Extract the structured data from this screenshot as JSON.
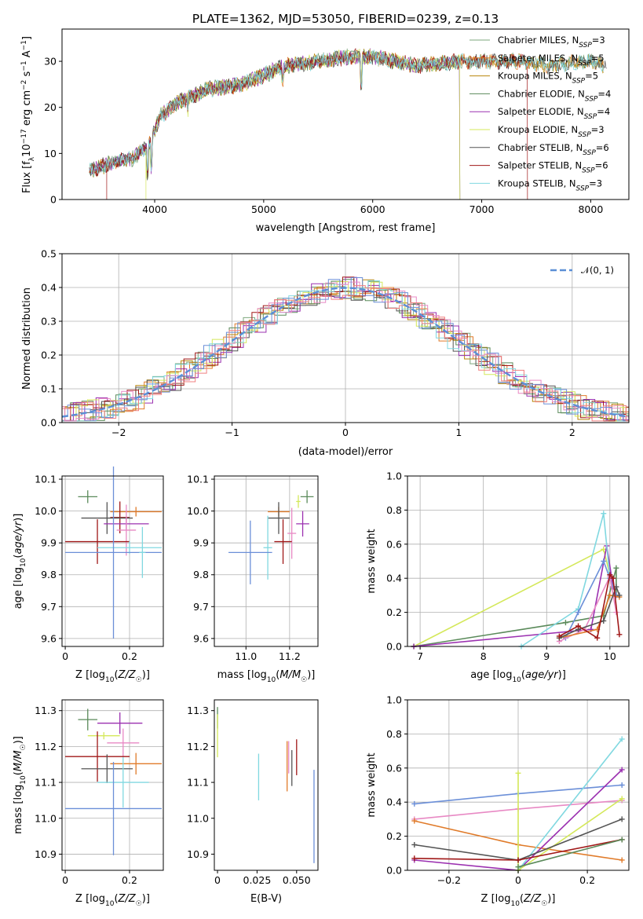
{
  "figure_title": "PLATE=1362, MJD=53050, FIBERID=0239, z=0.13",
  "colors": {
    "Chabrier MILES": "#7da77d",
    "Salpeter MILES": "#e07b2a",
    "Kroupa MILES": "#b8860b",
    "Chabrier ELODIE": "#5a8a5a",
    "Salpeter ELODIE": "#9b30b0",
    "Kroupa ELODIE": "#d4e85a",
    "Chabrier STELIB": "#555555",
    "Salpeter STELIB": "#a01818",
    "Kroupa STELIB": "#80d8e0",
    "normal": "#5b8fd6",
    "pink": "#e889c4",
    "blue": "#6b8fd8",
    "salmon": "#f08080"
  },
  "chart_data": [
    {
      "type": "line",
      "title": "PLATE=1362, MJD=53050, FIBERID=0239, z=0.13",
      "xlabel": "wavelength [Angstrom, rest frame]",
      "ylabel": "Flux [f_λ10^-17 erg cm^-2 s^-1 A^-1]",
      "xlim": [
        3150,
        8350
      ],
      "ylim": [
        0,
        37
      ],
      "xticks": [
        4000,
        5000,
        6000,
        7000,
        8000
      ],
      "yticks": [
        0,
        10,
        20,
        30
      ],
      "grid": false,
      "legend_position": "right",
      "legend": [
        "Chabrier MILES, N_SSP=3",
        "Salpeter MILES, N_SSP=5",
        "Kroupa MILES, N_SSP=5",
        "Chabrier ELODIE, N_SSP=4",
        "Salpeter ELODIE, N_SSP=4",
        "Kroupa ELODIE, N_SSP=3",
        "Chabrier STELIB, N_SSP=6",
        "Salpeter STELIB, N_SSP=6",
        "Kroupa STELIB, N_SSP=3"
      ],
      "continuum": {
        "x": [
          3400,
          3600,
          3800,
          3950,
          4050,
          4200,
          4500,
          4800,
          5000,
          5200,
          5500,
          5800,
          6000,
          6200,
          6400,
          6600,
          6800,
          7000,
          7200,
          7400,
          7600,
          7800,
          8000,
          8150
        ],
        "y": [
          6,
          8,
          9,
          12,
          18,
          21,
          24,
          25,
          27,
          29,
          30,
          31,
          31,
          30,
          29,
          29.5,
          30,
          30,
          30,
          30,
          29,
          29.5,
          30,
          29
        ]
      }
    },
    {
      "type": "histogram",
      "xlabel": "(data-model)/error",
      "ylabel": "Normed distribution",
      "xlim": [
        -2.5,
        2.5
      ],
      "ylim": [
        0,
        0.5
      ],
      "xticks": [
        -2,
        -1,
        0,
        1,
        2
      ],
      "yticks": [
        0.0,
        0.1,
        0.2,
        0.3,
        0.4,
        0.5
      ],
      "grid": true,
      "legend_position": "top-right",
      "legend": [
        "𝒩(0, 1)"
      ]
    },
    {
      "type": "scatter",
      "xlabel": "Z [log10(Z/Z☉)]",
      "ylabel": "age [log10(age/yr)]",
      "xlim": [
        -0.01,
        0.305
      ],
      "ylim": [
        9.575,
        10.11
      ],
      "xticks": [
        0.0,
        0.2
      ],
      "yticks": [
        9.6,
        9.7,
        9.8,
        9.9,
        10.0,
        10.1
      ],
      "grid": true,
      "points": [
        {
          "c": "Chabrier ELODIE",
          "x": 0.07,
          "y": 10.045,
          "ex": 0.03,
          "ey": 0.02
        },
        {
          "c": "Salpeter MILES",
          "x": 0.22,
          "y": 9.998,
          "ex": 0.08,
          "ey": 0.015
        },
        {
          "c": "Salpeter STELIB",
          "x": 0.17,
          "y": 9.98,
          "ex": 0.03,
          "ey": 0.05
        },
        {
          "c": "Chabrier STELIB",
          "x": 0.13,
          "y": 9.978,
          "ex": 0.08,
          "ey": 0.05
        },
        {
          "c": "Salpeter ELODIE",
          "x": 0.19,
          "y": 9.96,
          "ex": 0.07,
          "ey": 0.02
        },
        {
          "c": "pink",
          "x": 0.19,
          "y": 9.94,
          "ex": 0.03,
          "ey": 0.08
        },
        {
          "c": "Salpeter STELIB",
          "x": 0.1,
          "y": 9.904,
          "ex": 0.1,
          "ey": 0.07
        },
        {
          "c": "Kroupa STELIB",
          "x": 0.2,
          "y": 9.885,
          "ex": 0.1,
          "ey": 0.02
        },
        {
          "c": "blue",
          "x": 0.15,
          "y": 9.87,
          "ex": 0.15,
          "ey": 0.27
        },
        {
          "c": "Kroupa STELIB",
          "x": 0.24,
          "y": 9.87,
          "ex": 0.01,
          "ey": 0.08
        }
      ]
    },
    {
      "type": "scatter",
      "xlabel": "mass [log10(M/M☉)]",
      "ylabel": "",
      "xlim": [
        10.855,
        11.33
      ],
      "ylim": [
        9.575,
        10.11
      ],
      "xticks": [
        11.0,
        11.2
      ],
      "yticks": [
        9.6,
        9.7,
        9.8,
        9.9,
        10.0,
        10.1
      ],
      "grid": true,
      "points": [
        {
          "c": "Chabrier ELODIE",
          "x": 11.28,
          "y": 10.045,
          "ex": 0.03,
          "ey": 0.02
        },
        {
          "c": "Kroupa ELODIE",
          "x": 11.24,
          "y": 10.03,
          "ex": 0.01,
          "ey": 0.02
        },
        {
          "c": "Salpeter MILES",
          "x": 11.15,
          "y": 9.998,
          "ex": 0.05,
          "ey": 0.015
        },
        {
          "c": "Chabrier STELIB",
          "x": 11.15,
          "y": 9.978,
          "ex": 0.05,
          "ey": 0.05
        },
        {
          "c": "Salpeter ELODIE",
          "x": 11.26,
          "y": 9.96,
          "ex": 0.03,
          "ey": 0.04
        },
        {
          "c": "pink",
          "x": 11.21,
          "y": 9.93,
          "ex": 0.02,
          "ey": 0.08
        },
        {
          "c": "Salpeter STELIB",
          "x": 11.17,
          "y": 9.904,
          "ex": 0.04,
          "ey": 0.07
        },
        {
          "c": "Kroupa STELIB",
          "x": 11.1,
          "y": 9.885,
          "ex": 0.02,
          "ey": 0.1
        },
        {
          "c": "blue",
          "x": 11.02,
          "y": 9.87,
          "ex": 0.1,
          "ey": 0.1
        }
      ]
    },
    {
      "type": "line",
      "xlabel": "age [log10(age/yr)]",
      "ylabel": "mass weight",
      "xlim": [
        6.8,
        10.3
      ],
      "ylim": [
        0,
        1
      ],
      "xticks": [
        7,
        8,
        9,
        10
      ],
      "yticks": [
        0.0,
        0.2,
        0.4,
        0.6,
        0.8,
        1.0
      ],
      "grid": true,
      "series": [
        {
          "c": "Kroupa ELODIE",
          "x": [
            6.9,
            9.9,
            10.0
          ],
          "y": [
            0.0,
            0.57,
            0.42
          ]
        },
        {
          "c": "Chabrier ELODIE",
          "x": [
            6.9,
            9.3,
            9.9,
            10.1,
            10.1
          ],
          "y": [
            0.0,
            0.14,
            0.18,
            0.46,
            0.3
          ]
        },
        {
          "c": "Salpeter ELODIE",
          "x": [
            6.9,
            9.7,
            9.95,
            10.05
          ],
          "y": [
            0.0,
            0.1,
            0.59,
            0.35
          ]
        },
        {
          "c": "Kroupa STELIB",
          "x": [
            8.6,
            9.5,
            9.9,
            10.0
          ],
          "y": [
            0.0,
            0.22,
            0.78,
            0.4
          ]
        },
        {
          "c": "blue",
          "x": [
            9.3,
            9.5,
            9.9,
            10.0,
            10.1
          ],
          "y": [
            0.05,
            0.2,
            0.5,
            0.4,
            0.3
          ]
        },
        {
          "c": "pink",
          "x": [
            9.2,
            9.6,
            10.0,
            10.1
          ],
          "y": [
            0.03,
            0.1,
            0.41,
            0.2
          ]
        },
        {
          "c": "Salpeter MILES",
          "x": [
            9.2,
            9.8,
            10.0,
            10.15
          ],
          "y": [
            0.05,
            0.1,
            0.3,
            0.29
          ]
        },
        {
          "c": "Chabrier STELIB",
          "x": [
            9.2,
            9.5,
            9.9,
            10.1,
            10.15
          ],
          "y": [
            0.05,
            0.1,
            0.15,
            0.35,
            0.3
          ]
        },
        {
          "c": "Salpeter STELIB",
          "x": [
            9.2,
            9.5,
            9.8,
            10.0,
            10.05,
            10.15
          ],
          "y": [
            0.06,
            0.12,
            0.05,
            0.42,
            0.4,
            0.07
          ]
        }
      ]
    },
    {
      "type": "scatter",
      "xlabel": "Z [log10(Z/Z☉)]",
      "ylabel": "mass [log10(M/M☉)]",
      "xlim": [
        -0.01,
        0.305
      ],
      "ylim": [
        10.855,
        11.33
      ],
      "xticks": [
        0.0,
        0.2
      ],
      "yticks": [
        10.9,
        11.0,
        11.1,
        11.2,
        11.3
      ],
      "grid": true,
      "points": [
        {
          "c": "Chabrier ELODIE",
          "x": 0.07,
          "y": 11.275,
          "ex": 0.03,
          "ey": 0.03
        },
        {
          "c": "Salpeter ELODIE",
          "x": 0.17,
          "y": 11.265,
          "ex": 0.07,
          "ey": 0.03
        },
        {
          "c": "Kroupa ELODIE",
          "x": 0.12,
          "y": 11.23,
          "ex": 0.05,
          "ey": 0.01
        },
        {
          "c": "pink",
          "x": 0.18,
          "y": 11.21,
          "ex": 0.05,
          "ey": 0.04
        },
        {
          "c": "Salpeter STELIB",
          "x": 0.1,
          "y": 11.172,
          "ex": 0.1,
          "ey": 0.07
        },
        {
          "c": "Salpeter MILES",
          "x": 0.22,
          "y": 11.152,
          "ex": 0.08,
          "ey": 0.03
        },
        {
          "c": "Chabrier STELIB",
          "x": 0.13,
          "y": 11.138,
          "ex": 0.08,
          "ey": 0.04
        },
        {
          "c": "Kroupa STELIB",
          "x": 0.18,
          "y": 11.1,
          "ex": 0.08,
          "ey": 0.07
        },
        {
          "c": "blue",
          "x": 0.15,
          "y": 11.027,
          "ex": 0.15,
          "ey": 0.13
        }
      ]
    },
    {
      "type": "scatter",
      "xlabel": "E(B-V)",
      "ylabel": "",
      "xlim": [
        -0.002,
        0.0635
      ],
      "ylim": [
        10.855,
        11.33
      ],
      "xticks": [
        0.0,
        0.025,
        0.05
      ],
      "yticks": [
        10.9,
        11.0,
        11.1,
        11.2,
        11.3
      ],
      "grid": false,
      "points": [
        {
          "c": "Chabrier ELODIE",
          "x": 0.0,
          "y": 11.28,
          "ex": 0.0,
          "ey": 0.03
        },
        {
          "c": "Kroupa ELODIE",
          "x": 0.0,
          "y": 11.23,
          "ex": 0.0,
          "ey": 0.06
        },
        {
          "c": "Kroupa STELIB",
          "x": 0.026,
          "y": 11.115,
          "ex": 0.0,
          "ey": 0.065
        },
        {
          "c": "Salpeter MILES",
          "x": 0.044,
          "y": 11.145,
          "ex": 0.0,
          "ey": 0.07
        },
        {
          "c": "pink",
          "x": 0.045,
          "y": 11.17,
          "ex": 0.0,
          "ey": 0.045
        },
        {
          "c": "Chabrier STELIB",
          "x": 0.047,
          "y": 11.14,
          "ex": 0.0,
          "ey": 0.05
        },
        {
          "c": "Salpeter STELIB",
          "x": 0.05,
          "y": 11.17,
          "ex": 0.0,
          "ey": 0.05
        },
        {
          "c": "blue",
          "x": 0.061,
          "y": 11.005,
          "ex": 0.0,
          "ey": 0.13
        }
      ]
    },
    {
      "type": "line",
      "xlabel": "Z [log10(Z/Z☉)]",
      "ylabel": "mass weight",
      "xlim": [
        -0.32,
        0.32
      ],
      "ylim": [
        0,
        1
      ],
      "xticks": [
        -0.2,
        0.0,
        0.2
      ],
      "yticks": [
        0.0,
        0.2,
        0.4,
        0.6,
        0.8,
        1.0
      ],
      "grid": true,
      "series": [
        {
          "c": "blue",
          "x": [
            -0.3,
            0.0,
            0.3
          ],
          "y": [
            0.39,
            0.45,
            0.5
          ]
        },
        {
          "c": "pink",
          "x": [
            -0.3,
            0.0,
            0.3
          ],
          "y": [
            0.3,
            0.36,
            0.41
          ]
        },
        {
          "c": "Salpeter MILES",
          "x": [
            -0.3,
            0.0,
            0.3
          ],
          "y": [
            0.29,
            0.15,
            0.06
          ]
        },
        {
          "c": "Salpeter ELODIE",
          "x": [
            -0.3,
            0.0,
            0.3
          ],
          "y": [
            0.06,
            0.0,
            0.59
          ]
        },
        {
          "c": "Kroupa STELIB",
          "x": [
            0.0,
            0.3
          ],
          "y": [
            0.0,
            0.77
          ]
        },
        {
          "c": "Kroupa ELODIE",
          "x": [
            0.0,
            0.0,
            0.3
          ],
          "y": [
            0.57,
            0.0,
            0.42
          ]
        },
        {
          "c": "Chabrier STELIB",
          "x": [
            -0.3,
            0.0,
            0.3
          ],
          "y": [
            0.15,
            0.06,
            0.3
          ]
        },
        {
          "c": "Salpeter STELIB",
          "x": [
            -0.3,
            0.0,
            0.3
          ],
          "y": [
            0.07,
            0.06,
            0.18
          ]
        },
        {
          "c": "Chabrier ELODIE",
          "x": [
            0.0,
            0.3
          ],
          "y": [
            0.02,
            0.18
          ]
        }
      ]
    }
  ]
}
